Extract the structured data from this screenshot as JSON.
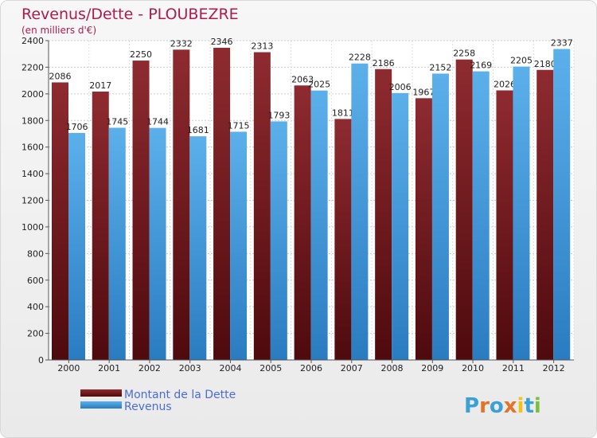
{
  "chart_data": {
    "type": "bar",
    "title": "Revenus/Dette - PLOUBEZRE",
    "subtitle": "(en milliers d'€)",
    "categories": [
      "2000",
      "2001",
      "2002",
      "2003",
      "2004",
      "2005",
      "2006",
      "2007",
      "2008",
      "2009",
      "2010",
      "2011",
      "2012"
    ],
    "series": [
      {
        "name": "Montant de la Dette",
        "values": [
          2086,
          2017,
          2250,
          2332,
          2346,
          2313,
          2063,
          1811,
          2186,
          1967,
          2258,
          2026,
          2180
        ],
        "color": "#7a1e22"
      },
      {
        "name": "Revenus",
        "values": [
          1706,
          1745,
          1744,
          1681,
          1715,
          1793,
          2025,
          2228,
          2006,
          2152,
          2169,
          2205,
          2337
        ],
        "color": "#4aa3e0"
      }
    ],
    "ylim": [
      0,
      2400
    ],
    "yticks": [
      0,
      200,
      400,
      600,
      800,
      1000,
      1200,
      1400,
      1600,
      1800,
      2000,
      2200,
      2400
    ],
    "grid": true,
    "legend": "bottom-left"
  },
  "logo": {
    "text": "Proxiti",
    "letters": [
      "P",
      "r",
      "o",
      "x",
      "i",
      "t",
      "i"
    ],
    "colors": [
      "#3aa0d8",
      "#e0752a",
      "#3aa0d8",
      "#e0752a",
      "#f2c21b",
      "#3aa0d8",
      "#7bbf3a"
    ]
  }
}
